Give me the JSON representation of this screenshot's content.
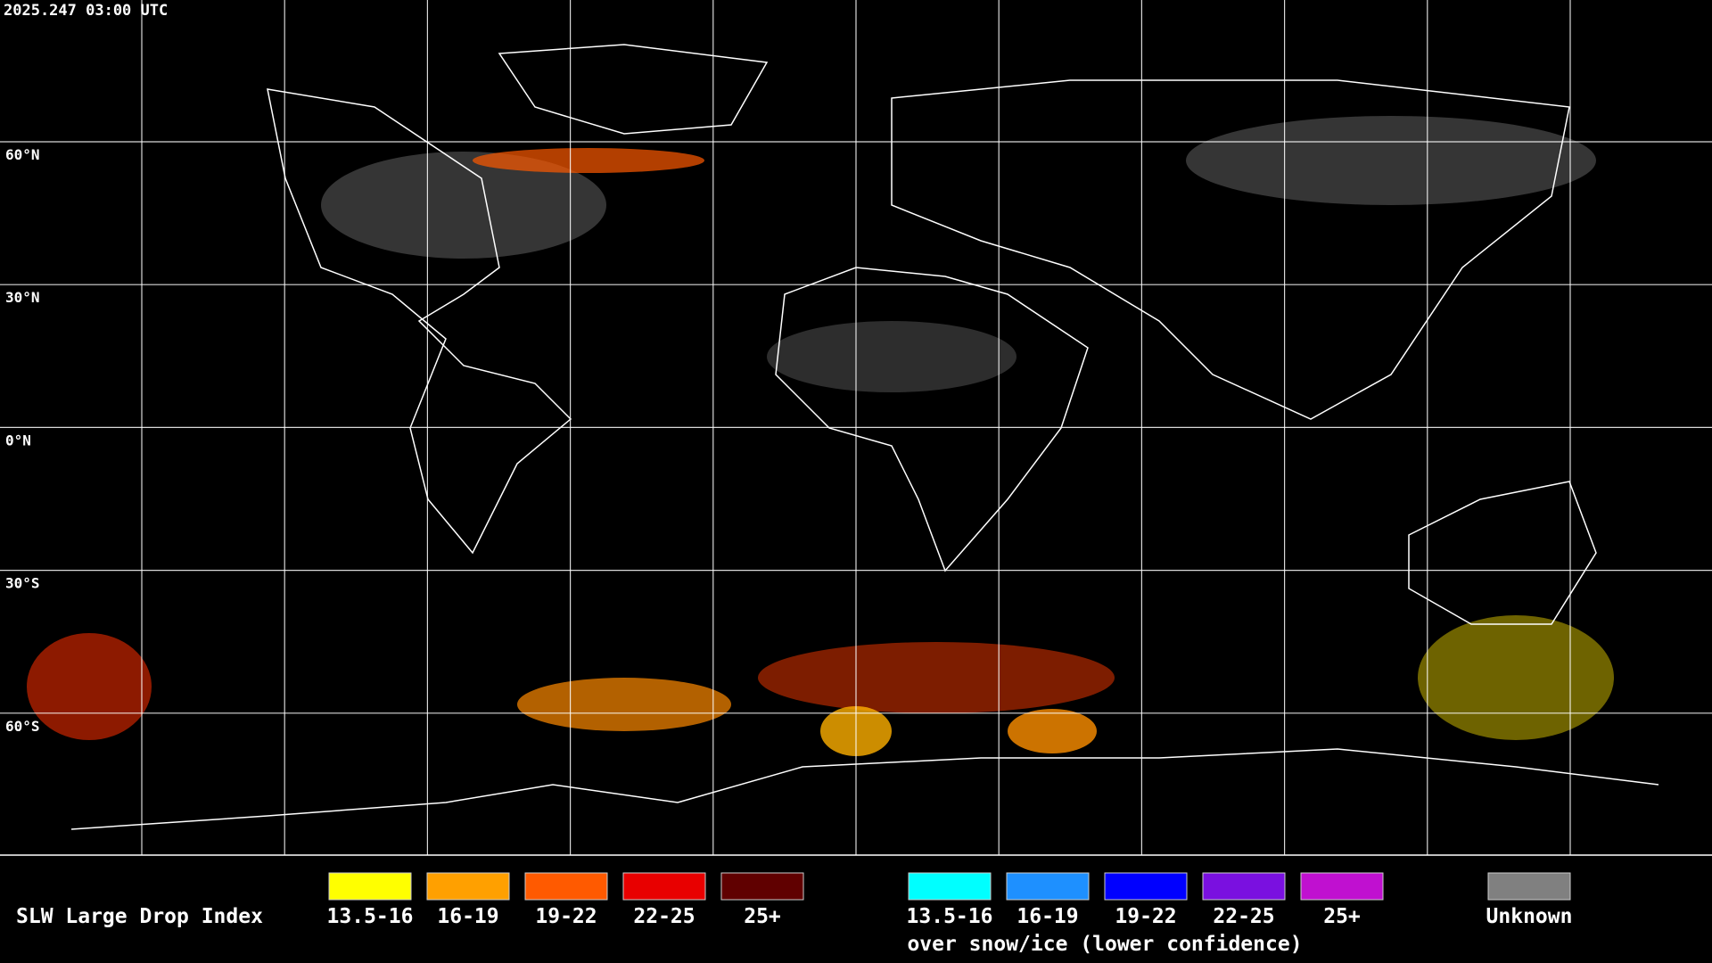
{
  "timestamp": "2025.247 03:00 UTC",
  "latitude_labels": [
    "60°N",
    "30°N",
    "0°N",
    "30°S",
    "60°S"
  ],
  "legend": {
    "title": "SLW Large Drop Index",
    "items": [
      {
        "label": "13.5-16",
        "color": "#ffff00"
      },
      {
        "label": "16-19",
        "color": "#ffa000"
      },
      {
        "label": "19-22",
        "color": "#ff5a00"
      },
      {
        "label": "22-25",
        "color": "#e80000"
      },
      {
        "label": "25+",
        "color": "#600000"
      }
    ],
    "snow_items": [
      {
        "label": "13.5-16",
        "color": "#00ffff"
      },
      {
        "label": "16-19",
        "color": "#1e90ff"
      },
      {
        "label": "19-22",
        "color": "#0000ff"
      },
      {
        "label": "22-25",
        "color": "#7a10e0"
      },
      {
        "label": "25+",
        "color": "#c010d0"
      }
    ],
    "snow_caption": "over snow/ice (lower confidence)",
    "unknown": {
      "label": "Unknown",
      "color": "#808080"
    }
  }
}
